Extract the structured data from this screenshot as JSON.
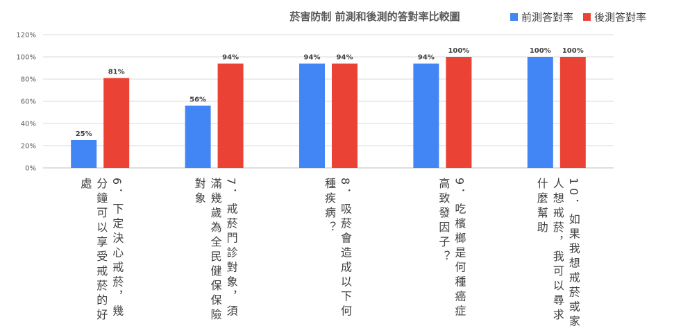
{
  "chart_data": {
    "type": "bar",
    "title": "菸害防制 前測和後測的答對率比較圖",
    "categories": [
      "6．下定決心戒菸，幾分鐘可以享受戒菸的好處",
      "7．戒菸門診對象，須滿幾歲為全民健保保險對象",
      "8．吸菸會造成以下何種疾病？",
      "9．吃檳榔是何種癌症高致發因子？",
      "10．如果我想戒菸或家人想戒菸，我可以尋求什麼幫助"
    ],
    "series": [
      {
        "name": "前測答對率",
        "color": "#4285F4",
        "values": [
          25,
          56,
          94,
          94,
          100
        ],
        "labels": [
          "25%",
          "56%",
          "94%",
          "94%",
          "100%"
        ]
      },
      {
        "name": "後測答對率",
        "color": "#EA4335",
        "values": [
          81,
          94,
          94,
          100,
          100
        ],
        "labels": [
          "81%",
          "94%",
          "94%",
          "100%",
          "100%"
        ]
      }
    ],
    "yticks": [
      "0%",
      "20%",
      "40%",
      "60%",
      "80%",
      "100%",
      "120%"
    ],
    "ylim": [
      0,
      120
    ],
    "grid": true,
    "legend": "top-right",
    "xlabel": "",
    "ylabel": ""
  }
}
